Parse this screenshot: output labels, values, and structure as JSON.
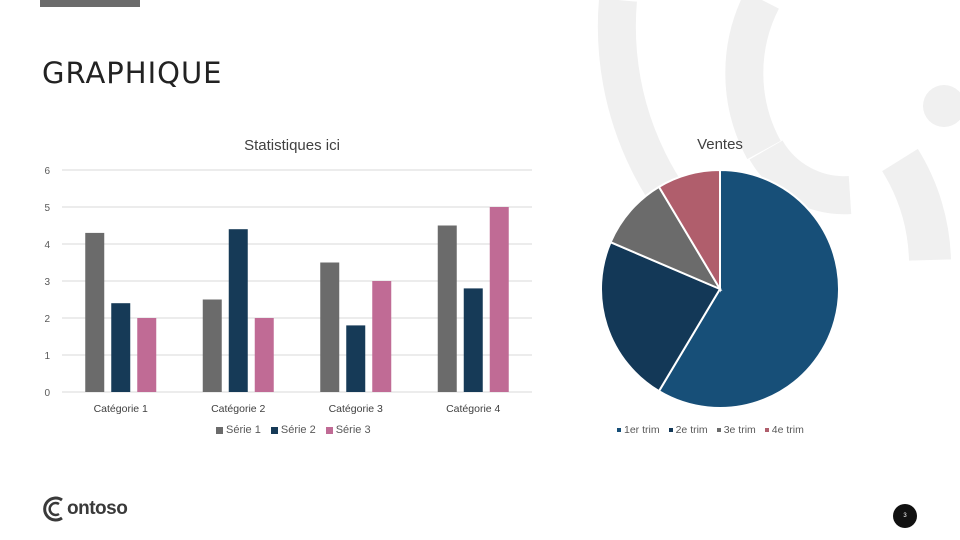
{
  "slide": {
    "title": "GRAPHIQUE",
    "brand": "ontoso",
    "brand_letter": "C",
    "page_number": "3"
  },
  "colors": {
    "serie1": "#6b6b6b",
    "serie2": "#163a57",
    "serie3": "#c06b95",
    "q1": "#174f78",
    "q2": "#133857",
    "q3": "#6b6b6b",
    "q4": "#b05e6c",
    "decor": "#f0f0f0"
  },
  "chart_data": [
    {
      "type": "bar",
      "title": "Statistiques ici",
      "categories": [
        "Catégorie 1",
        "Catégorie 2",
        "Catégorie 3",
        "Catégorie 4"
      ],
      "series": [
        {
          "name": "Série 1",
          "values": [
            4.3,
            2.5,
            3.5,
            4.5
          ]
        },
        {
          "name": "Série 2",
          "values": [
            2.4,
            4.4,
            1.8,
            2.8
          ]
        },
        {
          "name": "Série 3",
          "values": [
            2,
            2,
            3,
            5
          ]
        }
      ],
      "ylim": [
        0,
        6
      ],
      "yticks": [
        0,
        1,
        2,
        3,
        4,
        5,
        6
      ],
      "grid": true,
      "legend_position": "bottom"
    },
    {
      "type": "pie",
      "title": "Ventes",
      "labels": [
        "1er trim",
        "2e trim",
        "3e trim",
        "4e trim"
      ],
      "values": [
        8.2,
        3.2,
        1.4,
        1.2
      ],
      "legend_position": "bottom"
    }
  ]
}
